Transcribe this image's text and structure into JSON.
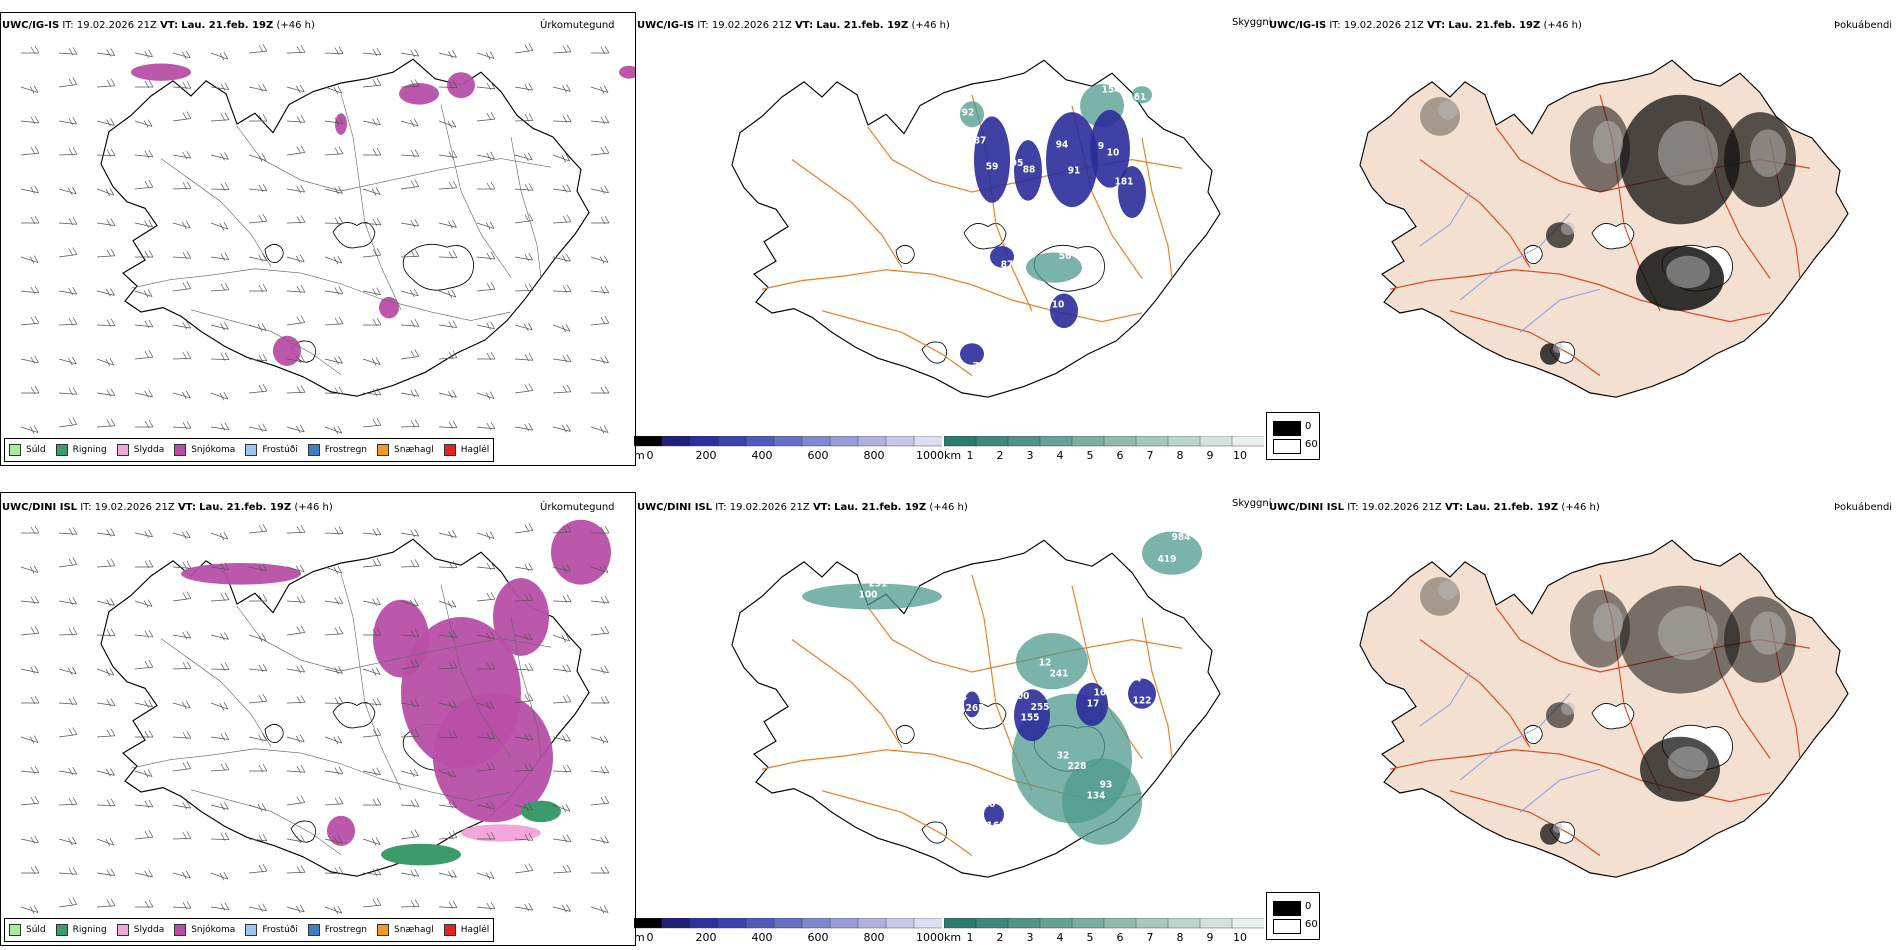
{
  "rows": [
    {
      "model": "UWC/IG-IS",
      "it_label": "IT:",
      "it_value": "19.02.2026 21Z",
      "vt_label": "VT:",
      "vt_value": "Lau. 21.feb. 19Z",
      "offset": "(+46 h)",
      "titles": {
        "precip": "Úrkomutegund",
        "ceiling": "Skyggni",
        "fog": "Þokuábendi"
      },
      "visibility_labels": [
        "87",
        "88",
        "94",
        "10",
        "181",
        "87",
        "10",
        "77",
        "92",
        "154",
        "61",
        "56",
        "59",
        "95",
        "91",
        "9"
      ]
    },
    {
      "model": "UWC/DINI ISL",
      "it_label": "IT:",
      "it_value": "19.02.2026 21Z",
      "vt_label": "VT:",
      "vt_value": "Lau. 21.feb. 19Z",
      "offset": "(+46 h)",
      "titles": {
        "precip": "Úrkomutegund",
        "ceiling": "Skyggni",
        "fog": "Þokuábendi"
      },
      "visibility_labels": [
        "400",
        "17",
        "254",
        "265",
        "220",
        "228",
        "134",
        "241",
        "100",
        "984",
        "155",
        "169",
        "122",
        "74",
        "161",
        "32",
        "93",
        "12",
        "291",
        "419",
        "255"
      ]
    }
  ],
  "precip_legend": [
    {
      "label": "Súld",
      "color": "#a6ec9b"
    },
    {
      "label": "Rigning",
      "color": "#3b9b6a"
    },
    {
      "label": "Slydda",
      "color": "#f2a6dc"
    },
    {
      "label": "Snjókoma",
      "color": "#b84fa6"
    },
    {
      "label": "Frostúði",
      "color": "#9fc4ee"
    },
    {
      "label": "Frostregn",
      "color": "#3f7fc7"
    },
    {
      "label": "Snæhagl",
      "color": "#f09a25"
    },
    {
      "label": "Haglél",
      "color": "#e6231e"
    }
  ],
  "height_bar": {
    "unit": "m",
    "ticks": [
      "0",
      "200",
      "400",
      "600",
      "800",
      "1000"
    ]
  },
  "visibility_bar": {
    "unit": "km",
    "ticks": [
      "1",
      "2",
      "3",
      "4",
      "5",
      "6",
      "7",
      "8",
      "9",
      "10"
    ]
  },
  "fog_legend": {
    "min": "0",
    "max": "60"
  },
  "colors": {
    "snow": "#b84fa6",
    "rain": "#3b9b6a",
    "sleet": "#f2a6dc",
    "low_cloud": "#2a2d9a",
    "vis_teal": "#4e9a8c",
    "road": "#e8852c",
    "land_fog": "#f4e0d0",
    "road_red": "#dd4422"
  }
}
